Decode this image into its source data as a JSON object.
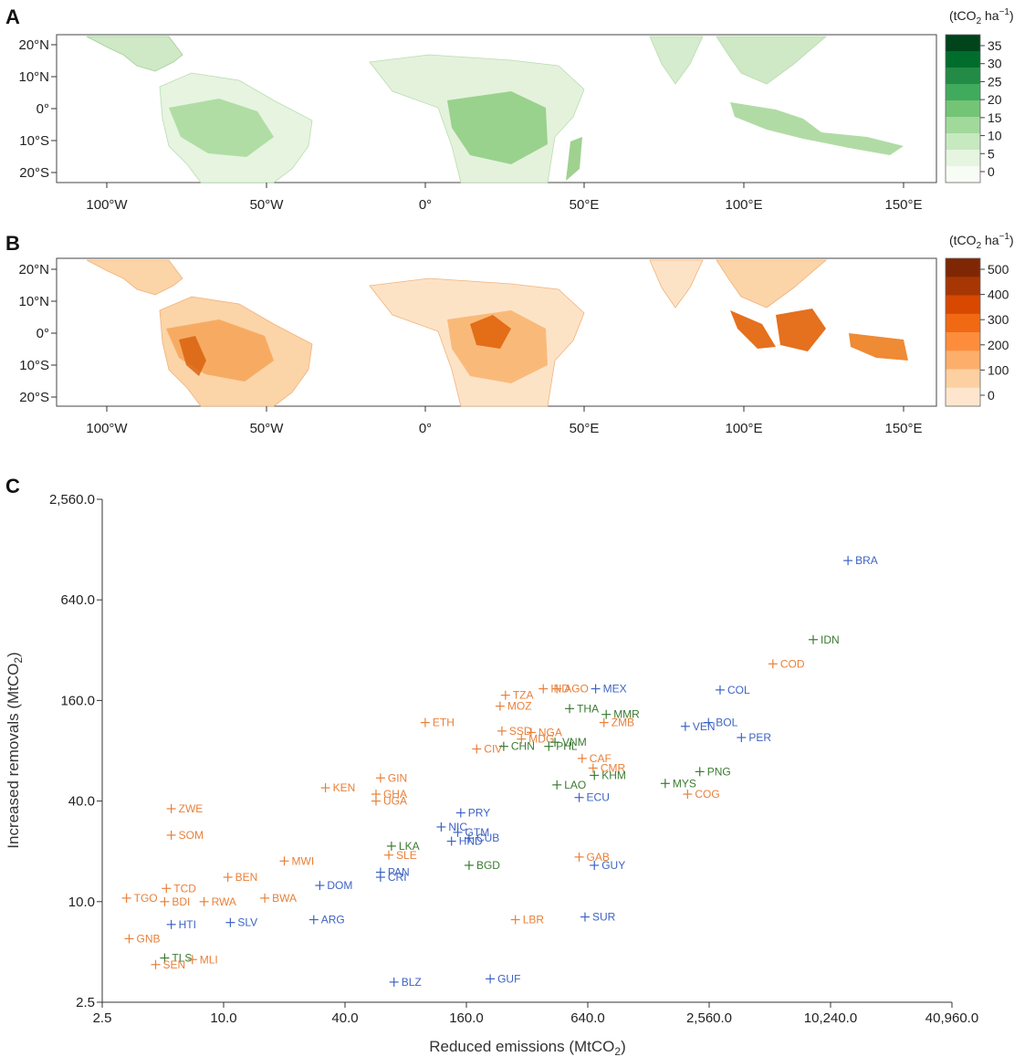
{
  "colors": {
    "green_scale": [
      "#f7fcf5",
      "#e5f5e0",
      "#c7e9c0",
      "#a1d99b",
      "#74c476",
      "#41ab5d",
      "#238b45",
      "#006d2c",
      "#00441b"
    ],
    "orange_scale": [
      "#fee6ce",
      "#fdd0a2",
      "#fdae6b",
      "#fd8d3c",
      "#f16913",
      "#d94801",
      "#a63603",
      "#7f2704"
    ],
    "group_orange": "#e8803a",
    "group_blue": "#3d63c4",
    "group_green": "#3c7a33"
  },
  "panels": {
    "a": {
      "letter": "A",
      "colorbar_title_main": "(tCO",
      "colorbar_title_sub": "2",
      "colorbar_title_rest": " ha",
      "colorbar_title_sup": "−1",
      "colorbar_title_close": ")",
      "colorbar_ticks": [
        "35",
        "30",
        "25",
        "20",
        "15",
        "10",
        "5",
        "0"
      ],
      "lat_ticks": [
        "20°N",
        "10°N",
        "0°",
        "10°S",
        "20°S"
      ],
      "lon_ticks": [
        "100°W",
        "50°W",
        "0°",
        "50°E",
        "100°E",
        "150°E"
      ]
    },
    "b": {
      "letter": "B",
      "colorbar_title_main": "(tCO",
      "colorbar_title_sub": "2",
      "colorbar_title_rest": " ha",
      "colorbar_title_sup": "−1",
      "colorbar_title_close": ")",
      "colorbar_ticks": [
        "500",
        "400",
        "300",
        "200",
        "100",
        "0"
      ],
      "lat_ticks": [
        "20°N",
        "10°N",
        "0°",
        "10°S",
        "20°S"
      ],
      "lon_ticks": [
        "100°W",
        "50°W",
        "0°",
        "50°E",
        "100°E",
        "150°E"
      ]
    },
    "c": {
      "letter": "C",
      "xlabel_main": "Reduced emissions (MtCO",
      "xlabel_sub": "2",
      "xlabel_close": ")",
      "ylabel_main": "Increased removals (MtCO",
      "ylabel_sub": "2",
      "ylabel_close": ")",
      "x_ticks": [
        "2.5",
        "10.0",
        "40.0",
        "160.0",
        "640.0",
        "2,560.0",
        "10,240.0",
        "40,960.0"
      ],
      "y_ticks": [
        "2.5",
        "10.0",
        "40.0",
        "160.0",
        "640.0",
        "2,560.0"
      ]
    }
  },
  "chart_data": {
    "type": "scatter",
    "scale": "log",
    "xlim": [
      2.5,
      40960
    ],
    "ylim": [
      2.5,
      2560
    ],
    "xlabel": "Reduced emissions (MtCO2)",
    "ylabel": "Increased removals (MtCO2)",
    "points": [
      {
        "label": "BRA",
        "x": 12500,
        "y": 1100,
        "group": "blue"
      },
      {
        "label": "IDN",
        "x": 8400,
        "y": 370,
        "group": "green"
      },
      {
        "label": "COD",
        "x": 5300,
        "y": 265,
        "group": "orange"
      },
      {
        "label": "COL",
        "x": 2900,
        "y": 185,
        "group": "blue"
      },
      {
        "label": "BOL",
        "x": 2540,
        "y": 118,
        "group": "blue"
      },
      {
        "label": "VEN",
        "x": 1950,
        "y": 112,
        "group": "blue"
      },
      {
        "label": "PER",
        "x": 3700,
        "y": 96,
        "group": "blue"
      },
      {
        "label": "MEX",
        "x": 700,
        "y": 188,
        "group": "blue"
      },
      {
        "label": "IND",
        "x": 385,
        "y": 188,
        "group": "orange"
      },
      {
        "label": "AGO",
        "x": 450,
        "y": 188,
        "group": "orange"
      },
      {
        "label": "TZA",
        "x": 250,
        "y": 172,
        "group": "orange"
      },
      {
        "label": "MOZ",
        "x": 235,
        "y": 148,
        "group": "orange"
      },
      {
        "label": "THA",
        "x": 520,
        "y": 143,
        "group": "green"
      },
      {
        "label": "MMR",
        "x": 790,
        "y": 132,
        "group": "green"
      },
      {
        "label": "ZMB",
        "x": 770,
        "y": 118,
        "group": "orange"
      },
      {
        "label": "ETH",
        "x": 100,
        "y": 118,
        "group": "orange"
      },
      {
        "label": "SSD",
        "x": 240,
        "y": 105,
        "group": "orange"
      },
      {
        "label": "NGA",
        "x": 335,
        "y": 103,
        "group": "orange"
      },
      {
        "label": "MDG",
        "x": 300,
        "y": 94,
        "group": "orange"
      },
      {
        "label": "CIV",
        "x": 180,
        "y": 82,
        "group": "orange"
      },
      {
        "label": "CHN",
        "x": 245,
        "y": 85,
        "group": "green"
      },
      {
        "label": "PHL",
        "x": 410,
        "y": 85,
        "group": "green"
      },
      {
        "label": "VNM",
        "x": 440,
        "y": 90,
        "group": "green"
      },
      {
        "label": "CAF",
        "x": 600,
        "y": 72,
        "group": "orange"
      },
      {
        "label": "CMR",
        "x": 680,
        "y": 63,
        "group": "orange"
      },
      {
        "label": "KHM",
        "x": 690,
        "y": 57,
        "group": "green"
      },
      {
        "label": "LAO",
        "x": 450,
        "y": 50,
        "group": "green"
      },
      {
        "label": "ECU",
        "x": 580,
        "y": 42,
        "group": "blue"
      },
      {
        "label": "PNG",
        "x": 2300,
        "y": 60,
        "group": "green"
      },
      {
        "label": "MYS",
        "x": 1550,
        "y": 51,
        "group": "green"
      },
      {
        "label": "COG",
        "x": 2000,
        "y": 44,
        "group": "orange"
      },
      {
        "label": "KEN",
        "x": 32,
        "y": 48,
        "group": "orange"
      },
      {
        "label": "GIN",
        "x": 60,
        "y": 55,
        "group": "orange"
      },
      {
        "label": "GHA",
        "x": 57,
        "y": 44,
        "group": "orange"
      },
      {
        "label": "UGA",
        "x": 57,
        "y": 40,
        "group": "orange"
      },
      {
        "label": "PRY",
        "x": 150,
        "y": 34,
        "group": "blue"
      },
      {
        "label": "NIC",
        "x": 120,
        "y": 28,
        "group": "blue"
      },
      {
        "label": "GTM",
        "x": 145,
        "y": 26,
        "group": "blue"
      },
      {
        "label": "CUB",
        "x": 165,
        "y": 24,
        "group": "blue"
      },
      {
        "label": "HND",
        "x": 135,
        "y": 23,
        "group": "blue"
      },
      {
        "label": "LKA",
        "x": 68,
        "y": 21.5,
        "group": "green"
      },
      {
        "label": "SLE",
        "x": 66,
        "y": 19,
        "group": "orange"
      },
      {
        "label": "BGD",
        "x": 165,
        "y": 16.5,
        "group": "green"
      },
      {
        "label": "GAB",
        "x": 580,
        "y": 18.5,
        "group": "orange"
      },
      {
        "label": "GUY",
        "x": 690,
        "y": 16.5,
        "group": "blue"
      },
      {
        "label": "PAN",
        "x": 60,
        "y": 15,
        "group": "blue"
      },
      {
        "label": "CRI",
        "x": 60,
        "y": 14,
        "group": "blue"
      },
      {
        "label": "ZWE",
        "x": 5.5,
        "y": 36,
        "group": "orange"
      },
      {
        "label": "SOM",
        "x": 5.5,
        "y": 25,
        "group": "orange"
      },
      {
        "label": "MWI",
        "x": 20,
        "y": 17.5,
        "group": "orange"
      },
      {
        "label": "BEN",
        "x": 10.5,
        "y": 14,
        "group": "orange"
      },
      {
        "label": "DOM",
        "x": 30,
        "y": 12.5,
        "group": "blue"
      },
      {
        "label": "TCD",
        "x": 5.2,
        "y": 12,
        "group": "orange"
      },
      {
        "label": "TGO",
        "x": 3.3,
        "y": 10.5,
        "group": "orange"
      },
      {
        "label": "BDI",
        "x": 5.1,
        "y": 10,
        "group": "orange"
      },
      {
        "label": "RWA",
        "x": 8.0,
        "y": 10,
        "group": "orange"
      },
      {
        "label": "BWA",
        "x": 16,
        "y": 10.5,
        "group": "orange"
      },
      {
        "label": "HTI",
        "x": 5.5,
        "y": 7.3,
        "group": "blue"
      },
      {
        "label": "SLV",
        "x": 10.8,
        "y": 7.5,
        "group": "blue"
      },
      {
        "label": "ARG",
        "x": 28,
        "y": 7.8,
        "group": "blue"
      },
      {
        "label": "LBR",
        "x": 280,
        "y": 7.8,
        "group": "orange"
      },
      {
        "label": "SUR",
        "x": 620,
        "y": 8.1,
        "group": "blue"
      },
      {
        "label": "GNB",
        "x": 3.4,
        "y": 6.0,
        "group": "orange"
      },
      {
        "label": "TLS",
        "x": 5.1,
        "y": 4.6,
        "group": "green"
      },
      {
        "label": "MLI",
        "x": 7.0,
        "y": 4.5,
        "group": "orange"
      },
      {
        "label": "SEN",
        "x": 4.6,
        "y": 4.2,
        "group": "orange"
      },
      {
        "label": "BLZ",
        "x": 70,
        "y": 3.3,
        "group": "blue"
      },
      {
        "label": "GUF",
        "x": 210,
        "y": 3.45,
        "group": "blue"
      }
    ]
  }
}
